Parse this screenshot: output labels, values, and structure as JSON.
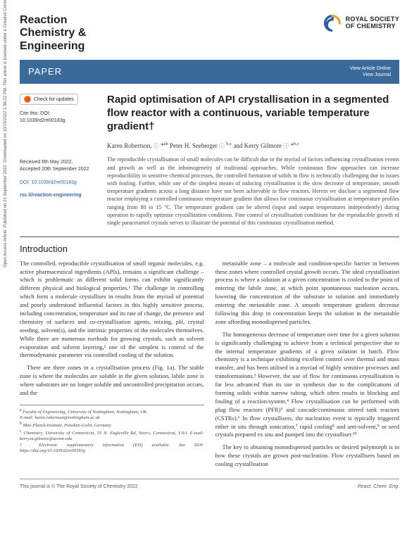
{
  "journal": {
    "name": "Reaction\nChemistry &\nEngineering"
  },
  "publisher": {
    "name": "ROYAL SOCIETY\nOF CHEMISTRY"
  },
  "bar": {
    "label": "PAPER",
    "link1": "View Article Online",
    "link2": "View Journal"
  },
  "meta": {
    "updates": "Check for updates",
    "cite": "Cite this: DOI: 10.1039/d2re00183g",
    "received": "Received 6th May 2022,",
    "accepted": "Accepted 20th September 2022",
    "doi": "DOI: 10.1039/d2re00183g",
    "rsclink": "rsc.li/reaction-engineering"
  },
  "article": {
    "title": "Rapid optimisation of API crystallisation in a segmented flow reactor with a continuous, variable temperature gradient†",
    "authors_html": "Karen Robertson, <span class='orcid'>ⓘ</span> *<sup>ab</sup> Peter H. Seeberger <span class='orcid'>ⓘ</span> <sup>b,c</sup> and Kerry Gilmore <span class='orcid'>ⓘ</span> *<sup>b,c</sup>",
    "abstract": "The reproducible crystallisation of small molecules can be difficult due to the myriad of factors influencing crystallisation events and growth as well as the inhomogeneity of traditional approaches. While continuous flow approaches can increase reproducibility in sensitive chemical processes, the controlled formation of solids in flow is technically challenging due to issues with fouling. Further, while one of the simplest means of inducing crystallisation is the slow decrease of temperature, smooth temperature gradients across a long distance have not been achievable in flow reactors. Herein we disclose a segmented flow reactor employing a controlled continuous temperature gradient that allows for continuous crystallisation at temperature profiles ranging from 80 to 15 °C. The temperature gradient can be altered (input and output temperatures independently) during operation to rapidly optimise crystallisation conditions. Fine control of crystallisation conditions for the reproducible growth of single paracetamol crystals serves to illustrate the potential of this continuous crystallisation method."
  },
  "intro": {
    "heading": "Introduction",
    "p1": "The controlled, reproducible crystallisation of small organic molecules, e.g. active pharmaceutical ingredients (APIs), remains a significant challenge – which is problematic as different solid forms can exhibit significantly different physical and biological properties.¹ The challenge in controlling which form a molecule crystallises in results from the myriad of potential and poorly understood influential factors in this highly sensitive process, including concentration, temperature and its rate of change, the presence and chemistry of surfaces and co-crystallisation agents, mixing, pH, crystal seeding, solvent(s), and the intrinsic properties of the molecules themselves. While there are numerous methods for growing crystals, such as solvent evaporation and solvent layering,² one of the simplest is control of the thermodynamic parameter via controlled cooling of the solution.",
    "p2": "There are three zones in a crystallisation process (Fig. 1a). The stable zone is where the molecules are soluble in the given solution, labile zone is where substrates are no longer soluble and uncontrolled precipitation occurs, and the",
    "p3": "metastable zone – a molecule and condition-specific barrier in between these zones where controlled crystal growth occurs. The ideal crystallisation process is where a solution at a given concentration is cooled to the point of entering the labile zone, at which point spontaneous nucleation occurs, lowering the concentration of the substrate in solution and immediately entering the metastable zone. A smooth temperature gradient decrease following this drop in concentration keeps the solution in the metastable zone affording monodispersed particles.",
    "p4": "The homogeneous decrease of temperature over time for a given solution is significantly challenging to achieve from a technical perspective due to the internal temperature gradients of a given solution in batch. Flow chemistry is a technique exhibiting excellent control over thermal and mass transfer, and has been utilised in a myriad of highly sensitive processes and transformations.³ However, the use of flow for continuous crystallisation is far less advanced than its use in synthesis due to the complications of forming solids within narrow tubing, which often results in blocking and fouling of a reaction/system.⁴ Flow crystallisation can be performed with plug flow reactors (PFR)⁵ and cascade/continuous stirred tank reactors (CSTRs).⁶ In flow crystallisers, the nucleation event is typically triggered either in situ through sonication,⁷ rapid cooling⁸ and anti-solvent,⁹ or seed crystals prepared ex situ and pumped into the crystalliser.¹⁰",
    "p5": "The key to obtaining monodispersed particles or desired polymorph is in how these crystals are grown post-nucleation. Flow crystallisers based on cooling crystallisation"
  },
  "affiliations": {
    "a": "Faculty of Engineering, University of Nottingham, Nottingham, UK.",
    "a_email": "E-mail: karen.robertson@nottingham.ac.uk",
    "b": "Max-Planck-Institute, Potsdam-Golm, Germany",
    "c": "Chemistry, University of Connecticut, 55 N. Eagleville Rd, Storrs, Connecticut, USA. E-mail: kerry.m.gilmore@uconn.edu",
    "dagger": "† Electronic supplementary information (ESI) available. See DOI: https://doi.org/10.1039/d2re00183g"
  },
  "footer": {
    "left": "This journal is © The Royal Society of Chemistry 2022",
    "right": "React. Chem. Eng."
  },
  "sideways": "Open Access Article. Published on 21 September 2022. Downloaded on 10/19/2022 1:36:22 PM.  This article is licensed under a Creative Commons Attribution 3.0 Unported Licence.",
  "colors": {
    "bar_bg": "#3a6a9a",
    "link_color": "#3a6a9a",
    "orcid_green": "#5c9e31"
  }
}
